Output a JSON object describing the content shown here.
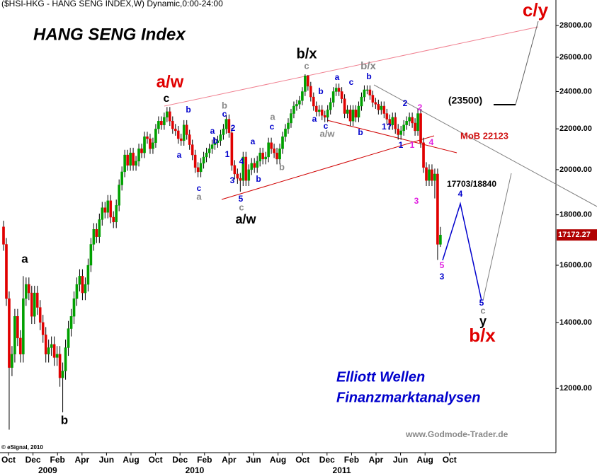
{
  "chart_data": {
    "type": "candlestick",
    "title": "($HSI-HKG - HANG SENG INDEX,W) Dynamic,0:00-24:00",
    "log_scale": true,
    "up_color": "#00a000",
    "down_color": "#e00000",
    "ylim": [
      10330,
      29720
    ],
    "yticks": [
      {
        "value": 12000,
        "label": "12000.00"
      },
      {
        "value": 14000,
        "label": "14000.00"
      },
      {
        "value": 16000,
        "label": "16000.00"
      },
      {
        "value": 18000,
        "label": "18000.00"
      },
      {
        "value": 20000,
        "label": "20000.00"
      },
      {
        "value": 22000,
        "label": "22000.00"
      },
      {
        "value": 24000,
        "label": "24000.00"
      },
      {
        "value": 26000,
        "label": "26000.00"
      },
      {
        "value": 28000,
        "label": "28000.00"
      }
    ],
    "month_labels": [
      "Oct",
      "Dec",
      "Feb",
      "Apr",
      "Jun",
      "Aug",
      "Oct",
      "Dec",
      "Feb",
      "Apr",
      "Jun",
      "Aug",
      "Oct",
      "Dec",
      "Feb",
      "Apr",
      "Jun",
      "Aug",
      "Oct"
    ],
    "year_labels": [
      "2009",
      "2010",
      "2011"
    ],
    "open": [
      17500,
      16800,
      14800,
      12600,
      13000,
      14200,
      13500,
      13000,
      14800,
      15300,
      15000,
      14200,
      15000,
      14500,
      14000,
      13600,
      13000,
      13200,
      13300,
      12900,
      13000,
      12300,
      12500,
      13200,
      13800,
      14200,
      14800,
      15300,
      15600,
      15000,
      15300,
      16000,
      16800,
      17400,
      17100,
      17800,
      18300,
      18100,
      18600,
      17900,
      17700,
      18400,
      19300,
      19900,
      20700,
      20200,
      20800,
      20200,
      20400,
      21000,
      20800,
      21600,
      21500,
      21000,
      21300,
      22000,
      22400,
      22200,
      22600,
      22900,
      22400,
      22000,
      21900,
      21500,
      21400,
      22200,
      21700,
      21200,
      20700,
      20100,
      19900,
      20300,
      20600,
      20800,
      21000,
      21200,
      21300,
      21400,
      21700,
      22000,
      22500,
      21800,
      20200,
      19800,
      19600,
      19500,
      20600,
      19500,
      20000,
      20300,
      20100,
      20400,
      20800,
      20500,
      20600,
      21300,
      21000,
      20800,
      20500,
      21000,
      21600,
      22000,
      22300,
      22800,
      23200,
      23300,
      23500,
      24000,
      24900,
      24300,
      23700,
      23200,
      22900,
      23000,
      22700,
      22600,
      23000,
      23400,
      24000,
      24200,
      24000,
      23600,
      22800,
      23000,
      22400,
      23000,
      22600,
      23200,
      23700,
      24100,
      24100,
      23800,
      23400,
      23300,
      23000,
      23200,
      22800,
      22500,
      22200,
      22600,
      22000,
      21700,
      21900,
      22200,
      22400,
      22600,
      22300,
      21900,
      22800,
      21300,
      20100,
      19500,
      20000,
      19500,
      19800,
      16800
    ],
    "high": [
      17750,
      17050,
      15050,
      13250,
      14450,
      14450,
      13750,
      15600,
      15550,
      15550,
      15250,
      15250,
      15250,
      14750,
      14250,
      13850,
      13450,
      13550,
      13550,
      13250,
      13250,
      12750,
      13450,
      14050,
      14450,
      15050,
      15550,
      15850,
      15850,
      15550,
      16250,
      17050,
      17650,
      17650,
      18050,
      18550,
      18550,
      18850,
      18850,
      18150,
      18650,
      19550,
      20150,
      20950,
      20950,
      21050,
      21050,
      20650,
      21250,
      21250,
      21850,
      21850,
      21750,
      21550,
      22250,
      22650,
      22650,
      22850,
      23150,
      23150,
      22650,
      22250,
      22150,
      21750,
      22450,
      22450,
      21950,
      21450,
      20950,
      20350,
      20550,
      20850,
      21050,
      21250,
      21450,
      21550,
      21650,
      21950,
      22250,
      22750,
      22750,
      22050,
      20450,
      20050,
      19850,
      20850,
      20850,
      20250,
      20550,
      20550,
      20650,
      21050,
      21050,
      20850,
      21550,
      21550,
      21250,
      21050,
      21250,
      21850,
      22250,
      22550,
      23050,
      23450,
      23550,
      23750,
      24250,
      24990,
      24950,
      24550,
      23950,
      23450,
      23250,
      23250,
      22950,
      23250,
      23650,
      24250,
      24450,
      24450,
      24250,
      23850,
      23250,
      23250,
      23250,
      23250,
      23450,
      23950,
      24350,
      24350,
      24350,
      24050,
      23650,
      23550,
      23450,
      23450,
      23050,
      22750,
      22850,
      22850,
      22250,
      22150,
      22450,
      22650,
      22850,
      22850,
      22550,
      23050,
      23050,
      21550,
      20350,
      20250,
      20250,
      20050,
      20050,
      17500
    ],
    "low": [
      16550,
      14550,
      10900,
      12350,
      12750,
      13250,
      12750,
      12750,
      14550,
      14750,
      13950,
      13950,
      14250,
      13750,
      13350,
      12750,
      12750,
      12950,
      12650,
      12650,
      12050,
      11350,
      12250,
      12950,
      13550,
      13950,
      14550,
      15050,
      14750,
      14750,
      15050,
      15750,
      16550,
      16850,
      16850,
      17550,
      17850,
      17850,
      17650,
      17450,
      17450,
      18150,
      19050,
      19650,
      19950,
      19950,
      19950,
      19950,
      20150,
      20550,
      20550,
      21250,
      20750,
      20750,
      21050,
      21750,
      21950,
      21950,
      22350,
      22150,
      21750,
      21650,
      21250,
      21150,
      21150,
      21450,
      20950,
      20450,
      19850,
      19650,
      19650,
      20050,
      20350,
      20550,
      20750,
      20950,
      21050,
      21150,
      21450,
      21750,
      21550,
      19950,
      19550,
      19350,
      19000,
      19250,
      19250,
      19250,
      19750,
      19850,
      19850,
      20150,
      20250,
      20250,
      20350,
      20750,
      20550,
      20250,
      20250,
      20750,
      21350,
      21750,
      22050,
      22550,
      22950,
      23050,
      23250,
      23750,
      24050,
      23450,
      22950,
      22650,
      22650,
      22450,
      22350,
      22350,
      22750,
      23150,
      23750,
      23750,
      23350,
      22550,
      22550,
      22150,
      22150,
      22350,
      22350,
      22950,
      23450,
      23850,
      23550,
      23150,
      23050,
      22750,
      22750,
      22550,
      22250,
      21950,
      21950,
      21750,
      21450,
      21450,
      21650,
      21950,
      22150,
      22050,
      21650,
      21650,
      21050,
      19850,
      19250,
      19250,
      19250,
      18700,
      16200,
      16700
    ],
    "close": [
      16800,
      14800,
      12600,
      13000,
      14200,
      13500,
      13000,
      14800,
      15300,
      15000,
      14200,
      15000,
      14500,
      14000,
      13600,
      13000,
      13200,
      13300,
      12900,
      13000,
      12300,
      12500,
      13200,
      13800,
      14200,
      14800,
      15300,
      15600,
      15000,
      15300,
      16000,
      16800,
      17400,
      17100,
      17800,
      18300,
      18100,
      18600,
      17900,
      17700,
      18400,
      19300,
      19900,
      20700,
      20200,
      20800,
      20200,
      20400,
      21000,
      20800,
      21600,
      21500,
      21000,
      21300,
      22000,
      22400,
      22200,
      22600,
      22900,
      22400,
      22000,
      21900,
      21500,
      21400,
      22200,
      21700,
      21200,
      20700,
      20100,
      19900,
      20300,
      20600,
      20800,
      21000,
      21200,
      21300,
      21400,
      21700,
      22000,
      22500,
      21800,
      20200,
      19800,
      19600,
      19500,
      20600,
      19500,
      20000,
      20300,
      20100,
      20400,
      20800,
      20500,
      20600,
      21300,
      21000,
      20800,
      20500,
      21000,
      21600,
      22000,
      22300,
      22800,
      23200,
      23300,
      23500,
      24000,
      24900,
      24300,
      23700,
      23200,
      22900,
      23000,
      22700,
      22600,
      23000,
      23400,
      24000,
      24200,
      24000,
      23600,
      22800,
      23000,
      22400,
      23000,
      22600,
      23200,
      23700,
      24100,
      24100,
      23800,
      23400,
      23300,
      23000,
      23200,
      22800,
      22500,
      22200,
      22600,
      22000,
      21700,
      21900,
      22200,
      22400,
      22600,
      22300,
      21900,
      22800,
      21300,
      20100,
      19500,
      20000,
      19500,
      19800,
      16800,
      17172.27
    ],
    "annotations": [
      {
        "text": "HANG SENG Index",
        "color": "#000000"
      },
      {
        "text": "a/w",
        "color": "#e00000"
      },
      {
        "text": "c",
        "color": "#000000"
      },
      {
        "text": "b/x",
        "color": "#000000"
      },
      {
        "text": "c",
        "color": "#888888"
      },
      {
        "text": "b/x",
        "color": "#888888"
      },
      {
        "text": "c/y",
        "color": "#e00000"
      },
      {
        "text": "(23500)",
        "color": "#000000"
      },
      {
        "text": "MoB 22123",
        "color": "#d01010"
      },
      {
        "text": "17703/18840",
        "color": "#000000"
      },
      {
        "text": "a",
        "color": "#000000"
      },
      {
        "text": "b",
        "color": "#000000"
      },
      {
        "text": "a/w",
        "color": "#000000"
      },
      {
        "text": "5",
        "color": "#0000cc"
      },
      {
        "text": "c",
        "color": "#888888"
      },
      {
        "text": "b/x",
        "color": "#e00000"
      },
      {
        "text": "y",
        "color": "#000000"
      },
      {
        "text": "c",
        "color": "#888888"
      },
      {
        "text": "5",
        "color": "#0000cc"
      },
      {
        "text": "4",
        "color": "#0000cc"
      },
      {
        "text": "5",
        "color": "#e020e0"
      },
      {
        "text": "3",
        "color": "#0000cc"
      },
      {
        "text": "3",
        "color": "#e020e0"
      },
      {
        "text": "Elliott Wellen",
        "color": "#0000cc"
      },
      {
        "text": "Finanzmarktanalysen",
        "color": "#0000cc"
      },
      {
        "text": "www.Godmode-Trader.de",
        "color": "#888888"
      },
      {
        "text": "© eSignal, 2010",
        "color": "#000000"
      },
      {
        "text": "b",
        "color": "#0000cc"
      },
      {
        "text": "a",
        "color": "#0000cc"
      },
      {
        "text": "a",
        "color": "#0000cc"
      },
      {
        "text": "c",
        "color": "#0000cc"
      },
      {
        "text": "2",
        "color": "#0000cc"
      },
      {
        "text": "b",
        "color": "#0000cc"
      },
      {
        "text": "1",
        "color": "#0000cc"
      },
      {
        "text": "4",
        "color": "#0000cc"
      },
      {
        "text": "3",
        "color": "#0000cc"
      },
      {
        "text": "a",
        "color": "#0000cc"
      },
      {
        "text": "c",
        "color": "#0000cc"
      },
      {
        "text": "b",
        "color": "#0000cc"
      },
      {
        "text": "c",
        "color": "#0000cc"
      },
      {
        "text": "a",
        "color": "#888888"
      },
      {
        "text": "b",
        "color": "#888888"
      },
      {
        "text": "a",
        "color": "#888888"
      },
      {
        "text": "b",
        "color": "#888888"
      },
      {
        "text": "b",
        "color": "#0000cc"
      },
      {
        "text": "a",
        "color": "#0000cc"
      },
      {
        "text": "a",
        "color": "#0000cc"
      },
      {
        "text": "c",
        "color": "#0000cc"
      },
      {
        "text": "a/w",
        "color": "#888888"
      },
      {
        "text": "c",
        "color": "#0000cc"
      },
      {
        "text": "b",
        "color": "#0000cc"
      },
      {
        "text": "b",
        "color": "#0000cc"
      },
      {
        "text": "1?",
        "color": "#0000cc"
      },
      {
        "text": "2",
        "color": "#0000cc"
      },
      {
        "text": "1",
        "color": "#0000cc"
      },
      {
        "text": "1",
        "color": "#e020e0"
      },
      {
        "text": "2",
        "color": "#e020e0"
      },
      {
        "text": "4",
        "color": "#e020e0"
      }
    ]
  }
}
